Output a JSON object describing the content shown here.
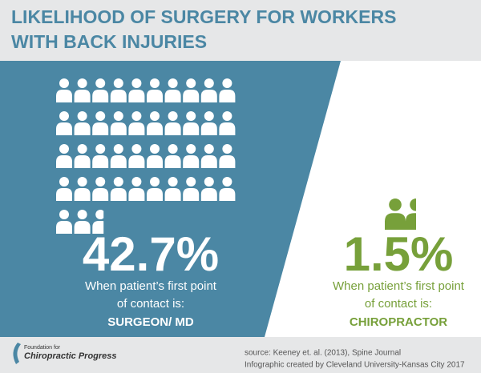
{
  "chart_data": {
    "type": "pictogram",
    "title": [
      "LIKELIHOOD OF SURGERY FOR WORKERS",
      "WITH BACK INJURIES"
    ],
    "categories": [
      "SURGEON/ MD",
      "CHIROPRACTOR"
    ],
    "values": [
      42.7,
      1.5
    ],
    "value_labels": [
      "42.7%",
      "1.5%"
    ],
    "colors": [
      "#ffffff",
      "#77a03a"
    ],
    "caption": [
      "When patient’s first point",
      "of contact is:"
    ],
    "source": [
      "source: Keeney et. al. (2013), Spine Journal",
      "Infographic created by Cleveland University-Kansas City 2017"
    ],
    "logo": [
      "Foundation for",
      "Chiropractic Progress"
    ]
  }
}
